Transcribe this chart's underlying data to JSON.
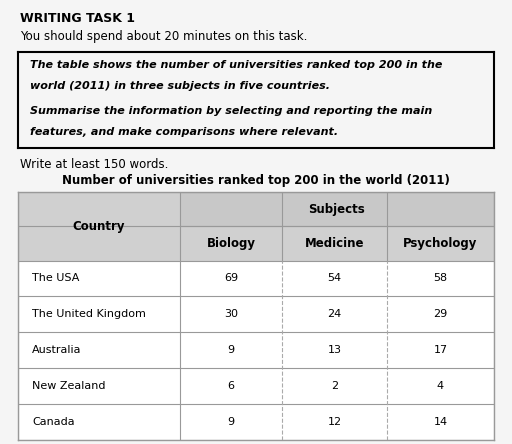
{
  "title_bold": "WRITING TASK 1",
  "subtitle": "You should spend about 20 minutes on this task.",
  "box_lines": [
    "The table shows the number of universities ranked top 200 in the",
    "world (2011) in three subjects in five countries.",
    "",
    "Summarise the information by selecting and reporting the main",
    "features, and make comparisons where relevant."
  ],
  "write_prompt": "Write at least 150 words.",
  "table_title": "Number of universities ranked top 200 in the world (2011)",
  "col_header_merged": "Subjects",
  "col_headers": [
    "Country",
    "Biology",
    "Medicine",
    "Psychology"
  ],
  "rows": [
    [
      "The USA",
      "69",
      "54",
      "58"
    ],
    [
      "The United Kingdom",
      "30",
      "24",
      "29"
    ],
    [
      "Australia",
      "9",
      "13",
      "17"
    ],
    [
      "New Zealand",
      "6",
      "2",
      "4"
    ],
    [
      "Canada",
      "9",
      "12",
      "14"
    ]
  ],
  "header_bg": "#c8c8c8",
  "subheader_bg": "#d0d0d0",
  "row_bg": "#ffffff",
  "border_color": "#999999",
  "inner_divider_color": "#aaaaaa",
  "text_color": "#000000",
  "background_color": "#f5f5f5"
}
